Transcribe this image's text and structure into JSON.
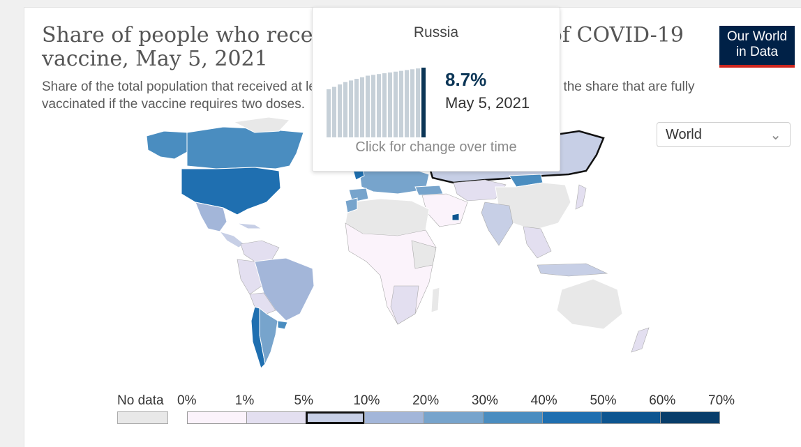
{
  "title": "Share of people who received at least one dose of COVID-19 vaccine, May 5, 2021",
  "subtitle": "Share of the total population that received at least one vaccine dose. This may not equal the share that are fully vaccinated if the vaccine requires two doses.",
  "logo": {
    "line1": "Our World",
    "line2": "in Data"
  },
  "region_select": {
    "value": "World"
  },
  "tooltip": {
    "country": "Russia",
    "value": "8.7%",
    "date": "May 5, 2021",
    "hint": "Click for change over time",
    "sparkline": [
      6.0,
      6.3,
      6.6,
      6.9,
      7.1,
      7.3,
      7.5,
      7.7,
      7.8,
      7.9,
      8.0,
      8.1,
      8.2,
      8.3,
      8.4,
      8.5,
      8.6,
      8.7
    ]
  },
  "legend": {
    "nodata_label": "No data",
    "ticks": [
      "0%",
      "1%",
      "5%",
      "10%",
      "20%",
      "30%",
      "40%",
      "50%",
      "60%",
      "70%"
    ],
    "colors": [
      "#fbf3fb",
      "#e3dff0",
      "#c7cfe6",
      "#a3b6d9",
      "#77a4cc",
      "#4a8dc0",
      "#1f6fb0",
      "#0d5590",
      "#083d6a"
    ],
    "highlighted_bin": 2
  },
  "colors": {
    "high": "#1f6fb0",
    "mid": "#4a8dc0",
    "lowmid": "#a3b6d9",
    "low": "#e3dff0",
    "verylow": "#fbf3fb",
    "nodata": "#e8e8e8"
  }
}
